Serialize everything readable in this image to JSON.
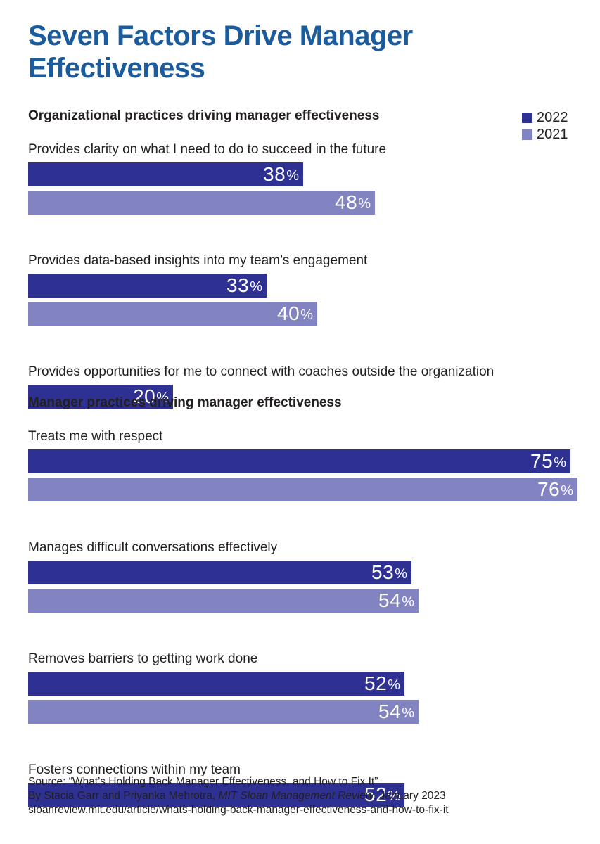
{
  "title": "Seven Factors Drive Manager Effectiveness",
  "legend": [
    {
      "label": "2022",
      "color": "#2e3192"
    },
    {
      "label": "2021",
      "color": "#8284c2"
    }
  ],
  "chart_data": {
    "type": "bar",
    "orientation": "horizontal",
    "xlim": [
      0,
      100
    ],
    "value_suffix": "%",
    "series_colors": {
      "2022": "#2e3192",
      "2021": "#8284c2"
    },
    "sections": [
      {
        "title": "Organizational practices driving manager effectiveness",
        "items": [
          {
            "label": "Provides clarity on what I need to do to succeed in the future",
            "values": {
              "2022": 38,
              "2021": 48
            }
          },
          {
            "label": "Provides data-based insights into my team’s engagement",
            "values": {
              "2022": 33,
              "2021": 40
            }
          },
          {
            "label": "Provides opportunities for me to connect with coaches outside the organization",
            "values": {
              "2022": 20
            }
          }
        ]
      },
      {
        "title": "Manager practices driving manager effectiveness",
        "items": [
          {
            "label": "Treats me with respect",
            "values": {
              "2022": 75,
              "2021": 76
            }
          },
          {
            "label": "Manages difficult conversations effectively",
            "values": {
              "2022": 53,
              "2021": 54
            }
          },
          {
            "label": "Removes barriers to getting work done",
            "values": {
              "2022": 52,
              "2021": 54
            }
          },
          {
            "label": "Fosters connections within my team",
            "values": {
              "2022": 52
            }
          }
        ]
      }
    ]
  },
  "source": {
    "line1": "Source: “What’s Holding Back Manager Effectiveness, and How to Fix It”",
    "line2_prefix": "By Stacia Garr and Priyanka Mehrotra, ",
    "line2_italic": "MIT Sloan Management Review",
    "line2_suffix": ", January 2023",
    "line3": "sloanreview.mit.edu/article/whats-holding-back-manager-effectiveness-and-how-to-fix-it"
  }
}
